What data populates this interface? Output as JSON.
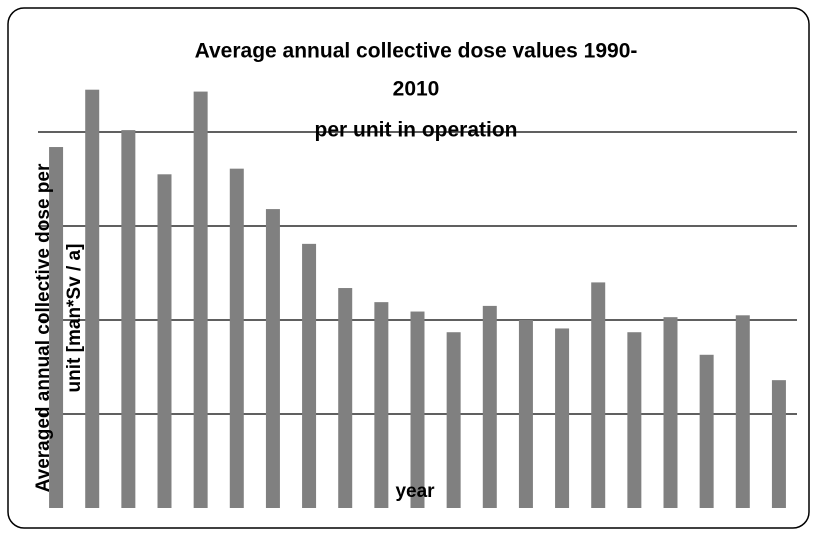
{
  "chart_data": {
    "type": "bar",
    "title": [
      "Average annual collective dose values 1990-",
      "2010",
      "per unit in operation"
    ],
    "x_label": "year",
    "y_label": [
      "Averaged annual collective dose per",
      "unit [man*Sv / a]"
    ],
    "categories": [
      null,
      null,
      null,
      null,
      null,
      null,
      null,
      null,
      null,
      null,
      null,
      null,
      null,
      null,
      null,
      null,
      null,
      null,
      null,
      null,
      null
    ],
    "values": [
      3.84,
      4.45,
      4.02,
      3.55,
      4.43,
      3.61,
      3.18,
      2.81,
      2.34,
      2.19,
      2.09,
      1.87,
      2.15,
      2.0,
      1.91,
      2.4,
      1.87,
      2.03,
      1.63,
      2.05,
      1.36
    ],
    "color": "#808080",
    "ylim": [
      0,
      5
    ],
    "yticks": [
      1,
      2,
      3,
      4
    ],
    "grid": true
  }
}
